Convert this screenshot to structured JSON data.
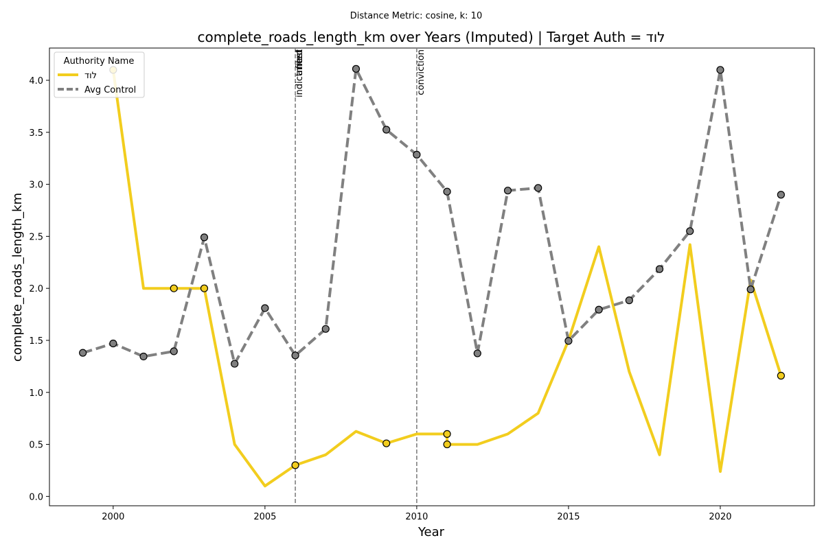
{
  "chart_data": {
    "type": "line",
    "suptitle": "Distance Metric: cosine, k: 10",
    "title": "complete_roads_length_km over Years (Imputed) | Target Auth = לוד",
    "xlabel": "Year",
    "ylabel": "complete_roads_length_km",
    "xlim": [
      1997.9,
      2023.1
    ],
    "ylim": [
      -0.09,
      4.31
    ],
    "x_ticks": [
      2000,
      2005,
      2010,
      2015,
      2020
    ],
    "y_ticks": [
      0.0,
      0.5,
      1.0,
      1.5,
      2.0,
      2.5,
      3.0,
      3.5,
      4.0
    ],
    "y_tick_labels": [
      "0.0",
      "0.5",
      "1.0",
      "1.5",
      "2.0",
      "2.5",
      "3.0",
      "3.5",
      "4.0"
    ],
    "grid": false,
    "legend": {
      "title": "Authority Name",
      "placement": "top-left"
    },
    "series": [
      {
        "name": "לוד",
        "color": "#f2cd1e",
        "style": "solid",
        "x": [
          2000,
          2001,
          2002,
          2003,
          2004,
          2005,
          2006,
          2007,
          2008,
          2009,
          2010,
          2011,
          2011,
          2012,
          2013,
          2014,
          2015,
          2016,
          2017,
          2018,
          2019,
          2020,
          2021,
          2022
        ],
        "values": [
          4.1,
          2.0,
          2.0,
          2.0,
          0.5,
          0.1,
          0.3,
          0.4,
          0.625,
          0.51,
          0.6,
          0.6,
          0.5,
          0.5,
          0.6,
          0.8,
          1.5,
          2.4,
          1.2,
          0.4,
          2.42,
          0.24,
          2.08,
          1.16
        ],
        "markers_x": [
          2000,
          2002,
          2003,
          2006,
          2009,
          2011,
          2011,
          2022
        ],
        "markers_y": [
          4.1,
          2.0,
          2.0,
          0.3,
          0.51,
          0.6,
          0.5,
          1.16
        ]
      },
      {
        "name": "Avg Control",
        "color": "#808080",
        "style": "dashed",
        "x": [
          1999,
          2000,
          2001,
          2002,
          2003,
          2004,
          2005,
          2006,
          2007,
          2008,
          2009,
          2010,
          2011,
          2012,
          2013,
          2014,
          2015,
          2016,
          2017,
          2018,
          2019,
          2020,
          2021,
          2022
        ],
        "values": [
          1.38,
          1.47,
          1.345,
          1.395,
          2.49,
          1.275,
          1.81,
          1.355,
          1.61,
          4.11,
          3.525,
          3.285,
          2.93,
          1.375,
          2.94,
          2.965,
          1.495,
          1.795,
          1.885,
          2.185,
          2.55,
          4.1,
          1.99,
          2.9
        ]
      }
    ],
    "events": [
      {
        "x": 2006,
        "labels": [
          "indictment",
          "filed",
          "arrest"
        ]
      },
      {
        "x": 2010,
        "labels": [
          "conviction"
        ]
      }
    ]
  }
}
